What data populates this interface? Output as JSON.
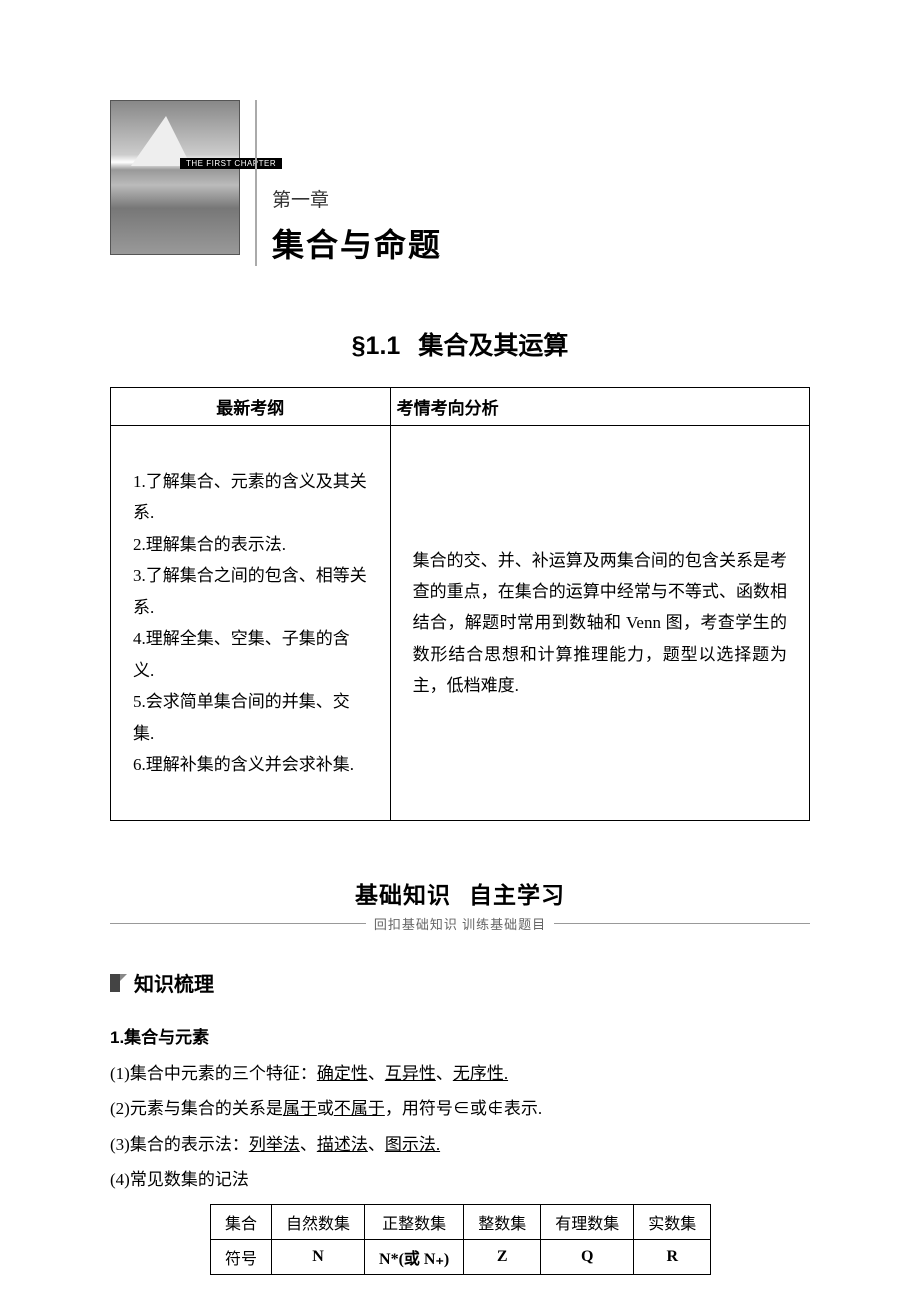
{
  "chapter": {
    "label_en": "THE FIRST CHAPTER",
    "number": "第一章",
    "title": "集合与命题"
  },
  "section": {
    "number": "§1.1",
    "title": "集合及其运算"
  },
  "syllabus_table": {
    "headers": {
      "left": "最新考纲",
      "right": "考情考向分析"
    },
    "left_items": [
      "1.了解集合、元素的含义及其关系.",
      "2.理解集合的表示法.",
      "3.了解集合之间的包含、相等关系.",
      "4.理解全集、空集、子集的含义.",
      "5.会求简单集合间的并集、交集.",
      "6.理解补集的含义并会求补集."
    ],
    "right_text": "集合的交、并、补运算及两集合间的包含关系是考查的重点，在集合的运算中经常与不等式、函数相结合，解题时常用到数轴和 Venn 图，考查学生的数形结合思想和计算推理能力，题型以选择题为主，低档难度."
  },
  "subsection": {
    "title_a": "基础知识",
    "title_b": "自主学习",
    "subtitle": "回扣基础知识  训练基础题目"
  },
  "block": {
    "title": "知识梳理"
  },
  "topic1": {
    "title": "1.集合与元素",
    "items": [
      {
        "prefix": "(1)集合中元素的三个特征：",
        "u": [
          "确定性",
          "互异性",
          "无序性."
        ],
        "sep": "、"
      },
      {
        "prefix": "(2)元素与集合的关系是",
        "u": [
          "属于"
        ],
        "mid": "或",
        "u2": [
          "不属于"
        ],
        "suffix": "，用符号∈或∉表示."
      },
      {
        "prefix": "(3)集合的表示法：",
        "u": [
          "列举法",
          "描述法",
          "图示法."
        ],
        "sep": "、"
      },
      {
        "prefix": "(4)常见数集的记法"
      }
    ]
  },
  "number_set_table": {
    "row_labels": {
      "set": "集合",
      "symbol": "符号"
    },
    "columns": [
      {
        "name": "自然数集",
        "symbol": "N"
      },
      {
        "name": "正整数集",
        "symbol": "N*(或 N₊)"
      },
      {
        "name": "整数集",
        "symbol": "Z"
      },
      {
        "name": "有理数集",
        "symbol": "Q"
      },
      {
        "name": "实数集",
        "symbol": "R"
      }
    ]
  }
}
